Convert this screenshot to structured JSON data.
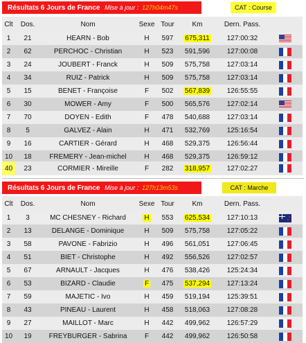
{
  "section1": {
    "header_title": "Résultats 6 Jours de France",
    "header_sub": "Mise à jour :",
    "header_time": "127h04m47s",
    "category": "CAT : Course",
    "columns": [
      "Clt",
      "Dos.",
      "Nom",
      "Sexe",
      "Tour",
      "Km",
      "Dern. Pass."
    ],
    "rows": [
      {
        "clt": "1",
        "dos": "21",
        "nom": "HEARN - Bob",
        "sexe": "H",
        "tour": "597",
        "km": "675,311",
        "km_hl": true,
        "pass": "127:00:32",
        "flag": "us"
      },
      {
        "clt": "2",
        "dos": "62",
        "nom": "PERCHOC - Christian",
        "sexe": "H",
        "tour": "523",
        "km": "591,596",
        "km_hl": false,
        "pass": "127:00:08",
        "flag": "fr"
      },
      {
        "clt": "3",
        "dos": "24",
        "nom": "JOUBERT - Franck",
        "sexe": "H",
        "tour": "509",
        "km": "575,758",
        "km_hl": false,
        "pass": "127:03:14",
        "flag": "fr"
      },
      {
        "clt": "4",
        "dos": "34",
        "nom": "RUIZ - Patrick",
        "sexe": "H",
        "tour": "509",
        "km": "575,758",
        "km_hl": false,
        "pass": "127:03:14",
        "flag": "fr"
      },
      {
        "clt": "5",
        "dos": "15",
        "nom": "BENET - Françoise",
        "sexe": "F",
        "tour": "502",
        "km": "567,839",
        "km_hl": true,
        "pass": "126:55:55",
        "flag": "fr"
      },
      {
        "clt": "6",
        "dos": "30",
        "nom": "MOWER - Amy",
        "sexe": "F",
        "tour": "500",
        "km": "565,576",
        "km_hl": false,
        "pass": "127:02:14",
        "flag": "us"
      },
      {
        "clt": "7",
        "dos": "70",
        "nom": "DOYEN - Edith",
        "sexe": "F",
        "tour": "478",
        "km": "540,688",
        "km_hl": false,
        "pass": "127:03:14",
        "flag": "fr"
      },
      {
        "clt": "8",
        "dos": "5",
        "nom": "GALVEZ - Alain",
        "sexe": "H",
        "tour": "471",
        "km": "532,769",
        "km_hl": false,
        "pass": "125:16:54",
        "flag": "fr"
      },
      {
        "clt": "9",
        "dos": "16",
        "nom": "CARTIER - Gérard",
        "sexe": "H",
        "tour": "468",
        "km": "529,375",
        "km_hl": false,
        "pass": "126:56:44",
        "flag": "fr"
      },
      {
        "clt": "10",
        "dos": "18",
        "nom": "FREMERY - Jean-michel",
        "sexe": "H",
        "tour": "468",
        "km": "529,375",
        "km_hl": false,
        "pass": "126:59:12",
        "flag": "fr"
      }
    ],
    "extra_row": {
      "clt": "40",
      "dos": "23",
      "nom": "CORMIER - Mireille",
      "sexe": "F",
      "tour": "282",
      "km": "318,957",
      "pass": "127:02:27",
      "flag": "fr"
    }
  },
  "section2": {
    "header_title": "Résultats 6 Jours de France",
    "header_sub": "Mise à jour :",
    "header_time": "127h13m53s",
    "category": "CAT : Marche",
    "columns": [
      "Clt",
      "Dos.",
      "Nom",
      "Sexe",
      "Tour",
      "Km",
      "Dern. Pass."
    ],
    "rows": [
      {
        "clt": "1",
        "dos": "3",
        "nom": "MC CHESNEY - Richard",
        "sexe": "H",
        "sexe_hl": true,
        "tour": "553",
        "km": "625,534",
        "km_hl": true,
        "pass": "127:10:13",
        "flag": "nz"
      },
      {
        "clt": "2",
        "dos": "13",
        "nom": "DELANGE - Dominique",
        "sexe": "H",
        "sexe_hl": false,
        "tour": "509",
        "km": "575,758",
        "km_hl": false,
        "pass": "127:05:22",
        "flag": "fr"
      },
      {
        "clt": "3",
        "dos": "58",
        "nom": "PAVONE - Fabrizio",
        "sexe": "H",
        "sexe_hl": false,
        "tour": "496",
        "km": "561,051",
        "km_hl": false,
        "pass": "127:06:45",
        "flag": "fr"
      },
      {
        "clt": "4",
        "dos": "51",
        "nom": "BIET - Christophe",
        "sexe": "H",
        "sexe_hl": false,
        "tour": "492",
        "km": "556,526",
        "km_hl": false,
        "pass": "127:02:57",
        "flag": "fr"
      },
      {
        "clt": "5",
        "dos": "67",
        "nom": "ARNAULT - Jacques",
        "sexe": "H",
        "sexe_hl": false,
        "tour": "476",
        "km": "538,426",
        "km_hl": false,
        "pass": "125:24:34",
        "flag": "fr"
      },
      {
        "clt": "6",
        "dos": "53",
        "nom": "BIZARD - Claudie",
        "sexe": "F",
        "sexe_hl": true,
        "tour": "475",
        "km": "537,294",
        "km_hl": true,
        "pass": "127:13:24",
        "flag": "fr"
      },
      {
        "clt": "7",
        "dos": "59",
        "nom": "MAJETIC - Ivo",
        "sexe": "H",
        "sexe_hl": false,
        "tour": "459",
        "km": "519,194",
        "km_hl": false,
        "pass": "125:39:51",
        "flag": "fr"
      },
      {
        "clt": "8",
        "dos": "43",
        "nom": "PINEAU - Laurent",
        "sexe": "H",
        "sexe_hl": false,
        "tour": "458",
        "km": "518,063",
        "km_hl": false,
        "pass": "127:08:28",
        "flag": "fr"
      },
      {
        "clt": "9",
        "dos": "27",
        "nom": "MAILLOT - Marc",
        "sexe": "H",
        "sexe_hl": false,
        "tour": "442",
        "km": "499,962",
        "km_hl": false,
        "pass": "126:57:29",
        "flag": "fr"
      },
      {
        "clt": "10",
        "dos": "19",
        "nom": "FREYBURGER - Sabrina",
        "sexe": "F",
        "sexe_hl": false,
        "tour": "442",
        "km": "499,962",
        "km_hl": false,
        "pass": "126:50:58",
        "flag": "fr"
      }
    ]
  },
  "colors": {
    "header_red": "#f21818",
    "highlight": "#ffff00",
    "time_yellow": "#ffd200"
  }
}
